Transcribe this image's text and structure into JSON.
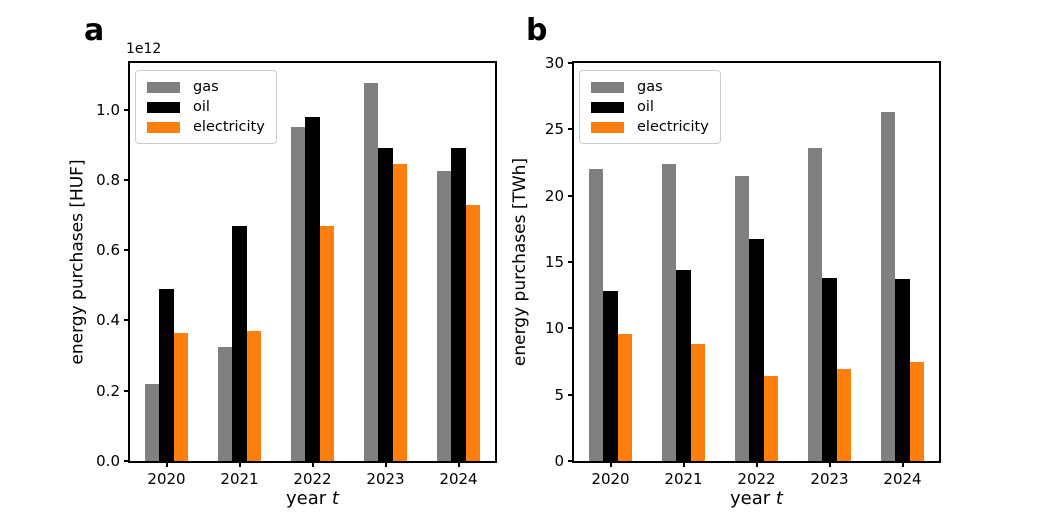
{
  "chart_data": [
    {
      "type": "bar",
      "panel_label": "a",
      "y_offset_text": "1e12",
      "ylabel": "energy purchases [HUF]",
      "xlabel_text": "year ",
      "xlabel_var": "t",
      "categories": [
        "2020",
        "2021",
        "2022",
        "2023",
        "2024"
      ],
      "series": [
        {
          "name": "gas",
          "color": "#808080",
          "values": [
            0.22,
            0.325,
            0.95,
            1.075,
            0.825
          ]
        },
        {
          "name": "oil",
          "color": "#000000",
          "values": [
            0.49,
            0.67,
            0.98,
            0.89,
            0.89
          ]
        },
        {
          "name": "electricity",
          "color": "#ff7f0e",
          "values": [
            0.365,
            0.37,
            0.67,
            0.845,
            0.73
          ]
        }
      ],
      "ylim": [
        0,
        1.133
      ],
      "yticks": [
        0.0,
        0.2,
        0.4,
        0.6,
        0.8,
        1.0
      ],
      "ytick_labels": [
        "0.0",
        "0.2",
        "0.4",
        "0.6",
        "0.8",
        "1.0"
      ],
      "legend": {
        "entries": [
          "gas",
          "oil",
          "electricity"
        ],
        "position": "upper left"
      },
      "grid": false
    },
    {
      "type": "bar",
      "panel_label": "b",
      "y_offset_text": "",
      "ylabel": "energy purchases [TWh]",
      "xlabel_text": "year ",
      "xlabel_var": "t",
      "categories": [
        "2020",
        "2021",
        "2022",
        "2023",
        "2024"
      ],
      "series": [
        {
          "name": "gas",
          "color": "#808080",
          "values": [
            22.0,
            22.4,
            21.5,
            23.6,
            26.3
          ]
        },
        {
          "name": "oil",
          "color": "#000000",
          "values": [
            12.8,
            14.4,
            16.7,
            13.8,
            13.7
          ]
        },
        {
          "name": "electricity",
          "color": "#ff7f0e",
          "values": [
            9.6,
            8.8,
            6.4,
            6.9,
            7.5
          ]
        }
      ],
      "ylim": [
        0,
        30
      ],
      "yticks": [
        0,
        5,
        10,
        15,
        20,
        25,
        30
      ],
      "ytick_labels": [
        "0",
        "5",
        "10",
        "15",
        "20",
        "25",
        "30"
      ],
      "legend": {
        "entries": [
          "gas",
          "oil",
          "electricity"
        ],
        "position": "upper left"
      },
      "grid": false
    }
  ]
}
